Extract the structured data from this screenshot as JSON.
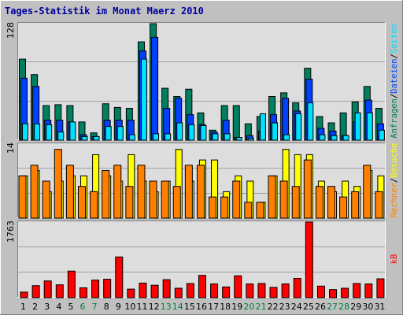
{
  "title": "Tages-Statistik im Monat Maerz 2010",
  "colors": {
    "background": "#C0C0C0",
    "plot": "#DDDDDD",
    "grid": "#A0A0A0",
    "anfragen": "#008060",
    "dateien": "#0040FF",
    "seiten": "#00E0FF",
    "besuche": "#FFFF00",
    "rechner": "#FF8000",
    "kb": "#FF0000",
    "weekend_label": "#008040"
  },
  "chart_data": [
    {
      "type": "bar",
      "panel": "top",
      "ymax_label": "128",
      "ylim": [
        0,
        128
      ],
      "right_labels": [
        {
          "text": "Anfragen",
          "color": "#008060"
        },
        {
          "text": "/",
          "color": "#000000"
        },
        {
          "text": "Dateien",
          "color": "#0040FF"
        },
        {
          "text": "/",
          "color": "#000000"
        },
        {
          "text": "Seiten",
          "color": "#00E0FF"
        }
      ],
      "x": [
        1,
        2,
        3,
        4,
        5,
        6,
        7,
        8,
        9,
        10,
        11,
        12,
        13,
        14,
        15,
        16,
        17,
        18,
        19,
        20,
        21,
        22,
        23,
        24,
        25,
        26,
        27,
        28,
        29,
        30,
        31
      ],
      "series": [
        {
          "name": "Anfragen",
          "values": [
            89,
            72,
            38,
            39,
            38,
            20,
            8,
            40,
            36,
            35,
            108,
            128,
            57,
            48,
            56,
            30,
            11,
            38,
            38,
            18,
            26,
            48,
            52,
            41,
            79,
            26,
            19,
            30,
            42,
            59,
            35
          ]
        },
        {
          "name": "Dateien",
          "values": [
            68,
            59,
            22,
            22,
            20,
            6,
            4,
            22,
            22,
            22,
            98,
            113,
            35,
            46,
            28,
            17,
            9,
            22,
            3,
            5,
            10,
            28,
            46,
            32,
            67,
            13,
            10,
            5,
            20,
            44,
            18
          ]
        },
        {
          "name": "Seiten",
          "values": [
            18,
            18,
            17,
            9,
            20,
            4,
            4,
            15,
            15,
            6,
            89,
            7,
            7,
            19,
            17,
            16,
            7,
            7,
            3,
            2,
            29,
            19,
            6,
            29,
            41,
            6,
            5,
            5,
            30,
            30,
            11
          ]
        }
      ]
    },
    {
      "type": "bar",
      "panel": "middle",
      "ymax_label": "14",
      "ylim": [
        0,
        14
      ],
      "right_labels": [
        {
          "text": "Rechner",
          "color": "#FF8000"
        },
        {
          "text": "/",
          "color": "#000000"
        },
        {
          "text": "Besuche",
          "color": "#FFFF00"
        }
      ],
      "x": [
        1,
        2,
        3,
        4,
        5,
        6,
        7,
        8,
        9,
        10,
        11,
        12,
        13,
        14,
        15,
        16,
        17,
        18,
        19,
        20,
        21,
        22,
        23,
        24,
        25,
        26,
        27,
        28,
        29,
        30,
        31
      ],
      "series": [
        {
          "name": "Besuche",
          "values": [
            8,
            9,
            5,
            7,
            8,
            8,
            12,
            8,
            7,
            12,
            7,
            5,
            7,
            13,
            7,
            11,
            11,
            5,
            8,
            7,
            3,
            8,
            13,
            12,
            12,
            7,
            5,
            7,
            6,
            9,
            8
          ]
        },
        {
          "name": "Rechner",
          "values": [
            8,
            10,
            7,
            13,
            10,
            6,
            5,
            9,
            10,
            6,
            10,
            7,
            7,
            6,
            10,
            10,
            4,
            4,
            7,
            3,
            3,
            8,
            7,
            6,
            11,
            6,
            6,
            4,
            5,
            10,
            5
          ]
        }
      ]
    },
    {
      "type": "bar",
      "panel": "bottom",
      "ymax_label": "1763",
      "ylim": [
        0,
        1763
      ],
      "right_labels": [
        {
          "text": "kB",
          "color": "#FF0000"
        }
      ],
      "x": [
        1,
        2,
        3,
        4,
        5,
        6,
        7,
        8,
        9,
        10,
        11,
        12,
        13,
        14,
        15,
        16,
        17,
        18,
        19,
        20,
        21,
        22,
        23,
        24,
        25,
        26,
        27,
        28,
        29,
        30,
        31
      ],
      "series": [
        {
          "name": "kB",
          "values": [
            130,
            280,
            390,
            300,
            620,
            230,
            410,
            430,
            950,
            200,
            340,
            290,
            420,
            220,
            330,
            520,
            320,
            250,
            510,
            320,
            330,
            240,
            320,
            450,
            1763,
            270,
            190,
            220,
            330,
            320,
            440
          ]
        }
      ]
    }
  ],
  "x_labels": [
    "1",
    "2",
    "3",
    "4",
    "5",
    "6",
    "7",
    "8",
    "9",
    "10",
    "11",
    "12",
    "13",
    "14",
    "15",
    "16",
    "17",
    "18",
    "19",
    "20",
    "21",
    "22",
    "23",
    "24",
    "25",
    "26",
    "27",
    "28",
    "29",
    "30",
    "31"
  ],
  "weekend_days": [
    6,
    7,
    13,
    14,
    20,
    21,
    27,
    28
  ]
}
